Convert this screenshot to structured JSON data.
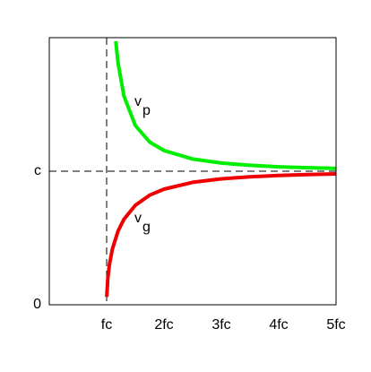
{
  "chart_data": {
    "type": "line",
    "xlim": [
      0,
      5
    ],
    "ylim": [
      0,
      2
    ],
    "xticks": [
      {
        "value": 1,
        "label": "fc"
      },
      {
        "value": 2,
        "label": "2fc"
      },
      {
        "value": 3,
        "label": "3fc"
      },
      {
        "value": 4,
        "label": "4fc"
      },
      {
        "value": 5,
        "label": "5fc"
      }
    ],
    "yticks": [
      0,
      {
        "value": 1,
        "label": "c"
      }
    ],
    "series": [
      {
        "label": "v",
        "subscript": "p",
        "color": "#00ee00",
        "x": [
          1.16,
          1.2,
          1.3,
          1.5,
          1.75,
          2,
          2.5,
          3,
          3.5,
          4,
          4.5,
          5
        ],
        "values": [
          1.973,
          1.809,
          1.565,
          1.342,
          1.218,
          1.155,
          1.091,
          1.061,
          1.044,
          1.033,
          1.026,
          1.021
        ]
      },
      {
        "label": "v",
        "subscript": "g",
        "color": "#ee0000",
        "x": [
          1.002,
          1.02,
          1.05,
          1.1,
          1.2,
          1.3,
          1.5,
          1.75,
          2,
          2.5,
          3,
          3.5,
          4,
          4.5,
          5
        ],
        "values": [
          0.06,
          0.197,
          0.305,
          0.417,
          0.553,
          0.639,
          0.745,
          0.821,
          0.866,
          0.917,
          0.943,
          0.958,
          0.968,
          0.975,
          0.98
        ]
      }
    ]
  }
}
